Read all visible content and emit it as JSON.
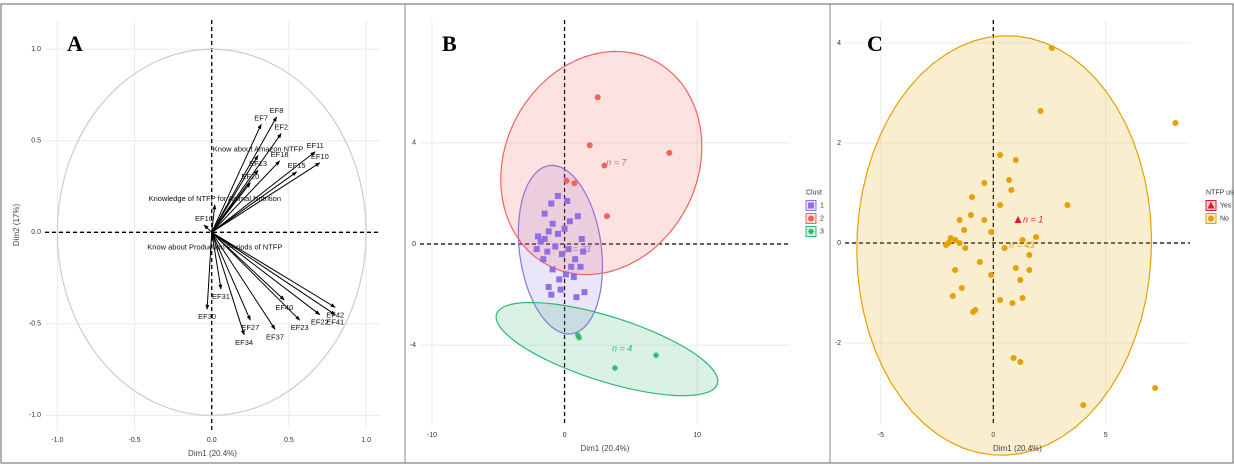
{
  "chart_data": [
    {
      "type": "vector",
      "panel_label": "A",
      "x_label": "Dim1 (20.4%)",
      "y_label": "Dim2 (17%)",
      "color": "#000000",
      "grid": true,
      "xlim": [
        -1.08,
        1.09
      ],
      "ylim": [
        -1.08,
        1.16
      ],
      "xticks": [
        {
          "value": -1,
          "label": "-1.0"
        },
        -0.5,
        {
          "value": 0,
          "label": "0.0"
        },
        0.5,
        {
          "value": 1,
          "label": "1.0"
        }
      ],
      "yticks": [
        {
          "value": -1,
          "label": "-1.0"
        },
        -0.5,
        {
          "value": 0,
          "label": "0.0"
        },
        0.5,
        {
          "value": 1,
          "label": "1.0"
        }
      ],
      "labels": [
        "EF8",
        "EF7",
        "EF2",
        "Know about Amazon NTFP",
        "EF11",
        "EF10",
        "EF18",
        "EF15",
        "EF13",
        "EF20",
        "Knowledge of  NTFP for Animal Nutrition",
        "EF16",
        "Know about Production Periods of NTFP",
        "EF31",
        "EF30",
        "EF27",
        "EF34",
        "EF37",
        "EF23",
        "EF22",
        "EF40",
        "EF42",
        "EF41"
      ],
      "x": [
        0.42,
        0.32,
        0.45,
        0.3,
        0.67,
        0.7,
        0.44,
        0.55,
        0.3,
        0.25,
        0.02,
        -0.05,
        0.02,
        0.06,
        -0.03,
        0.25,
        0.21,
        0.41,
        0.57,
        0.7,
        0.47,
        0.8,
        0.8
      ],
      "y": [
        0.63,
        0.59,
        0.54,
        0.42,
        0.44,
        0.38,
        0.39,
        0.33,
        0.34,
        0.27,
        0.15,
        0.04,
        -0.04,
        -0.31,
        -0.42,
        -0.48,
        -0.56,
        -0.53,
        -0.48,
        -0.45,
        -0.37,
        -0.41,
        -0.45
      ]
    },
    {
      "type": "scatter",
      "panel_label": "B",
      "x_label": "Dim1 (20.4%)",
      "legend_title": "Clust",
      "grid": true,
      "xlim": [
        -10.9,
        17.0
      ],
      "ylim": [
        -7.15,
        8.85
      ],
      "xticks": [
        -10,
        0,
        10
      ],
      "yticks": [
        -4,
        0,
        4
      ],
      "series": [
        {
          "name": "1",
          "label": "n = 33",
          "color": "#8f6fe3",
          "marker": "square",
          "x": [
            -1.5,
            -1.0,
            -0.5,
            0.2,
            -2,
            -1.8,
            -1.5,
            -1.2,
            -0.9,
            -0.5,
            0,
            0.4,
            1.0,
            1.3,
            1.4,
            1.2,
            0.8,
            0.3,
            -0.2,
            -0.7,
            -1.3,
            -1.6,
            -2.1,
            -0.9,
            -0.4,
            0.1,
            0.7,
            1.5,
            0.9,
            -0.3,
            -1.2,
            0.5,
            -1.0
          ],
          "y": [
            1.2,
            1.6,
            1.9,
            1.7,
            0.3,
            0.1,
            0.2,
            0.5,
            0.8,
            0.4,
            0.6,
            0.9,
            1.1,
            0.2,
            -0.3,
            -0.9,
            -0.6,
            -0.2,
            -0.4,
            -0.1,
            -0.3,
            -0.6,
            -0.2,
            -1.0,
            -1.4,
            -1.2,
            -1.3,
            -1.9,
            -2.1,
            -1.8,
            -1.7,
            -0.9,
            -2.0
          ]
        },
        {
          "name": "2",
          "label": "n = 7",
          "color": "#f0625c",
          "marker": "circle",
          "x": [
            2.5,
            1.9,
            0.15,
            0.75,
            3.2,
            7.9,
            3.0
          ],
          "y": [
            5.8,
            3.9,
            2.5,
            2.4,
            1.1,
            3.6,
            3.1
          ]
        },
        {
          "name": "3",
          "label": "n = 4",
          "color": "#2fb86e",
          "marker": "star",
          "x": [
            1.0,
            1.1,
            3.8,
            6.9
          ],
          "y": [
            -3.6,
            -3.7,
            -4.9,
            -4.4
          ]
        }
      ]
    },
    {
      "type": "scatter",
      "panel_label": "C",
      "x_label": "Dim1 (20.4%)",
      "legend_title": "NTFP use",
      "grid": true,
      "xlim": [
        -6.6,
        8.75
      ],
      "ylim": [
        -3.64,
        4.46
      ],
      "xticks": [
        -5,
        0,
        5
      ],
      "yticks": [
        -2,
        0,
        2,
        4
      ],
      "series": [
        {
          "name": "Yes",
          "label": "n = 1",
          "color": "#e3172d",
          "marker": "triangle",
          "x": [
            1.1
          ],
          "y": [
            0.46
          ]
        },
        {
          "name": "No",
          "label": "n = 43",
          "color": "#e6a000",
          "marker": "circle",
          "x": [
            2.6,
            2.1,
            8.1,
            0.3,
            1.0,
            -0.4,
            -0.95,
            0.7,
            0.3,
            3.3,
            -1.5,
            -1.3,
            -1.9,
            -1.7,
            -2.0,
            -1.5,
            -1.25,
            -0.1,
            0.5,
            1.3,
            1.6,
            1.0,
            1.2,
            -0.6,
            -1.7,
            -0.1,
            -1.4,
            -1.8,
            -0.8,
            -0.9,
            0.3,
            0.85,
            1.3,
            0.9,
            1.2,
            4.0,
            7.2,
            -1.0,
            1.9,
            -0.4,
            0.8,
            -2.1,
            1.6
          ],
          "y": [
            3.9,
            2.64,
            2.4,
            1.76,
            1.66,
            1.2,
            0.92,
            1.26,
            0.76,
            0.76,
            0.46,
            0.26,
            0.1,
            0.06,
            0,
            0,
            -0.1,
            0.22,
            -0.1,
            0.06,
            -0.24,
            -0.5,
            -0.74,
            -0.38,
            -0.54,
            -0.64,
            -0.9,
            -1.06,
            -1.34,
            -1.38,
            -1.14,
            -1.2,
            -1.1,
            -2.3,
            -2.38,
            -3.24,
            -2.9,
            0.56,
            0.12,
            0.46,
            1.06,
            -0.04,
            -0.54
          ]
        }
      ]
    }
  ]
}
